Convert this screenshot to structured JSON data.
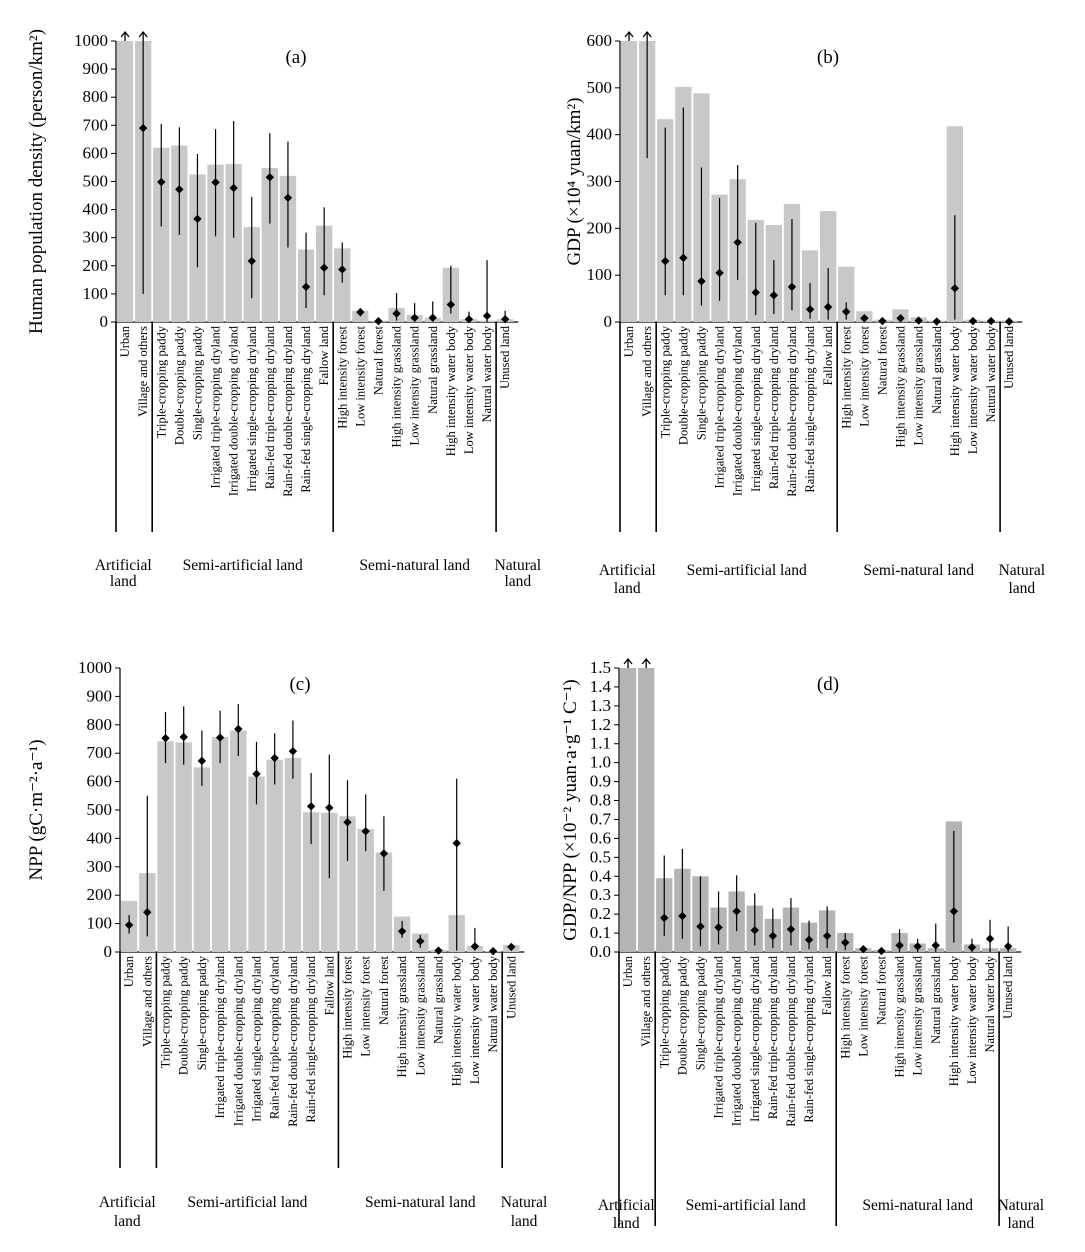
{
  "categories": [
    "Urban",
    "Village and others",
    "Triple-cropping paddy",
    "Double-cropping paddy",
    "Single-cropping paddy",
    "Irrigated triple-cropping dryland",
    "Irrigated double-cropping dryland",
    "Irrigated single-cropping dryland",
    "Rain-fed triple-cropping dryland",
    "Rain-fed double-cropping dryland",
    "Rain-fed single-cropping dryland",
    "Fallow land",
    "High intensity forest",
    "Low intensity forest",
    "Natural forest",
    "High intensity grassland",
    "Low intensity grassland",
    "Natural grassland",
    "High intensity water body",
    "Low intensity water body",
    "Natural water body",
    "Unused land"
  ],
  "groups": [
    "Artificial land",
    "Semi-artificial land",
    "Semi-natural land",
    "Natural land"
  ],
  "colors": {
    "bar_light": "#c8c8c8",
    "bar_dark": "#b4b4b4",
    "marker": "#000000"
  },
  "chart_data": [
    {
      "panel": "(a)",
      "type": "bar",
      "ylabel": "Human population density (person/km²)",
      "ylim": [
        0,
        1000
      ],
      "yticks": [
        0,
        100,
        200,
        300,
        400,
        500,
        600,
        700,
        800,
        900,
        1000
      ],
      "values": [
        1000,
        1000,
        620,
        628,
        525,
        560,
        562,
        338,
        548,
        520,
        258,
        343,
        262,
        40,
        5,
        50,
        25,
        15,
        193,
        10,
        5,
        10
      ],
      "markers": [
        null,
        690,
        498,
        472,
        367,
        497,
        477,
        217,
        515,
        442,
        125,
        193,
        187,
        35,
        3,
        30,
        15,
        15,
        62,
        10,
        22,
        10
      ],
      "err_low": [
        null,
        100,
        340,
        310,
        195,
        305,
        300,
        85,
        350,
        265,
        50,
        95,
        140,
        20,
        1,
        5,
        2,
        2,
        30,
        0,
        0,
        1
      ],
      "err_high": [
        null,
        1000,
        705,
        693,
        598,
        686,
        715,
        445,
        672,
        642,
        318,
        408,
        283,
        50,
        8,
        103,
        67,
        73,
        200,
        37,
        220,
        40
      ],
      "exceeds_axis": [
        true,
        true,
        false,
        false,
        false,
        false,
        false,
        false,
        false,
        false,
        false,
        false,
        false,
        false,
        false,
        false,
        false,
        false,
        false,
        false,
        false,
        false
      ]
    },
    {
      "panel": "(b)",
      "type": "bar",
      "ylabel": "GDP (×10⁴ yuan/km²)",
      "ylim": [
        0,
        600
      ],
      "yticks": [
        0,
        100,
        200,
        300,
        400,
        500,
        600
      ],
      "values": [
        600,
        600,
        433,
        502,
        488,
        272,
        305,
        218,
        207,
        252,
        153,
        237,
        118,
        23,
        5,
        27,
        10,
        3,
        418,
        5,
        3,
        3
      ],
      "markers": [
        null,
        null,
        130,
        137,
        87,
        105,
        170,
        63,
        57,
        75,
        27,
        32,
        22,
        8,
        2,
        8,
        3,
        1,
        72,
        2,
        2,
        1
      ],
      "err_low": [
        null,
        350,
        57,
        57,
        35,
        45,
        90,
        15,
        17,
        25,
        7,
        5,
        5,
        1,
        0,
        0,
        0,
        0,
        5,
        0,
        0,
        0
      ],
      "err_high": [
        null,
        600,
        415,
        458,
        330,
        265,
        335,
        212,
        132,
        220,
        83,
        115,
        42,
        12,
        4,
        15,
        10,
        2,
        228,
        5,
        4,
        2
      ],
      "exceeds_axis": [
        true,
        true,
        false,
        false,
        false,
        false,
        false,
        false,
        false,
        false,
        false,
        false,
        false,
        false,
        false,
        false,
        false,
        false,
        false,
        false,
        false,
        false
      ]
    },
    {
      "panel": "(c)",
      "type": "bar",
      "ylabel": "NPP (gC·m⁻²·a⁻¹)",
      "ylim": [
        0,
        1000
      ],
      "yticks": [
        0,
        100,
        200,
        300,
        400,
        500,
        600,
        700,
        800,
        900,
        1000
      ],
      "values": [
        180,
        278,
        742,
        738,
        650,
        757,
        780,
        618,
        677,
        683,
        492,
        490,
        478,
        433,
        350,
        125,
        65,
        8,
        130,
        22,
        3,
        25
      ],
      "markers": [
        95,
        140,
        753,
        757,
        673,
        755,
        785,
        627,
        683,
        707,
        513,
        508,
        457,
        425,
        347,
        73,
        38,
        5,
        383,
        20,
        3,
        18
      ],
      "err_low": [
        65,
        55,
        665,
        660,
        585,
        665,
        690,
        520,
        590,
        610,
        380,
        260,
        320,
        355,
        215,
        50,
        15,
        3,
        5,
        5,
        0,
        10
      ],
      "err_high": [
        130,
        550,
        845,
        865,
        780,
        850,
        873,
        740,
        770,
        815,
        630,
        695,
        605,
        555,
        478,
        110,
        60,
        12,
        610,
        85,
        8,
        25
      ],
      "exceeds_axis": [
        false,
        false,
        false,
        false,
        false,
        false,
        false,
        false,
        false,
        false,
        false,
        false,
        false,
        false,
        false,
        false,
        false,
        false,
        false,
        false,
        false,
        false
      ]
    },
    {
      "panel": "(d)",
      "type": "bar",
      "ylabel": "GDP/NPP (×10⁻² yuan·a·g⁻¹ C⁻¹)",
      "ylim": [
        0,
        1.5
      ],
      "yticks": [
        0,
        0.1,
        0.2,
        0.3,
        0.4,
        0.5,
        0.6,
        0.7,
        0.8,
        0.9,
        1.0,
        1.1,
        1.2,
        1.3,
        1.4,
        1.5
      ],
      "values": [
        1.5,
        1.5,
        0.39,
        0.44,
        0.4,
        0.235,
        0.32,
        0.245,
        0.175,
        0.235,
        0.155,
        0.22,
        0.1,
        0.02,
        0.01,
        0.1,
        0.045,
        0.02,
        0.69,
        0.04,
        0.02,
        0.02
      ],
      "markers": [
        null,
        null,
        0.18,
        0.19,
        0.135,
        0.13,
        0.215,
        0.115,
        0.085,
        0.12,
        0.065,
        0.085,
        0.05,
        0.015,
        0.005,
        0.035,
        0.03,
        0.035,
        0.215,
        0.025,
        0.07,
        0.03
      ],
      "err_low": [
        null,
        null,
        0.085,
        0.07,
        0.03,
        0.04,
        0.11,
        0.035,
        0.02,
        0.035,
        0.015,
        0.02,
        0.01,
        0.005,
        0,
        0,
        0,
        0,
        0.05,
        0,
        0,
        0
      ],
      "err_high": [
        null,
        null,
        0.51,
        0.545,
        0.4,
        0.32,
        0.405,
        0.31,
        0.23,
        0.285,
        0.165,
        0.24,
        0.1,
        0.03,
        0.015,
        0.12,
        0.07,
        0.15,
        0.64,
        0.07,
        0.17,
        0.135
      ],
      "exceeds_axis": [
        true,
        true,
        false,
        false,
        false,
        false,
        false,
        false,
        false,
        false,
        false,
        false,
        false,
        false,
        false,
        false,
        false,
        false,
        false,
        false,
        false,
        false
      ]
    }
  ]
}
